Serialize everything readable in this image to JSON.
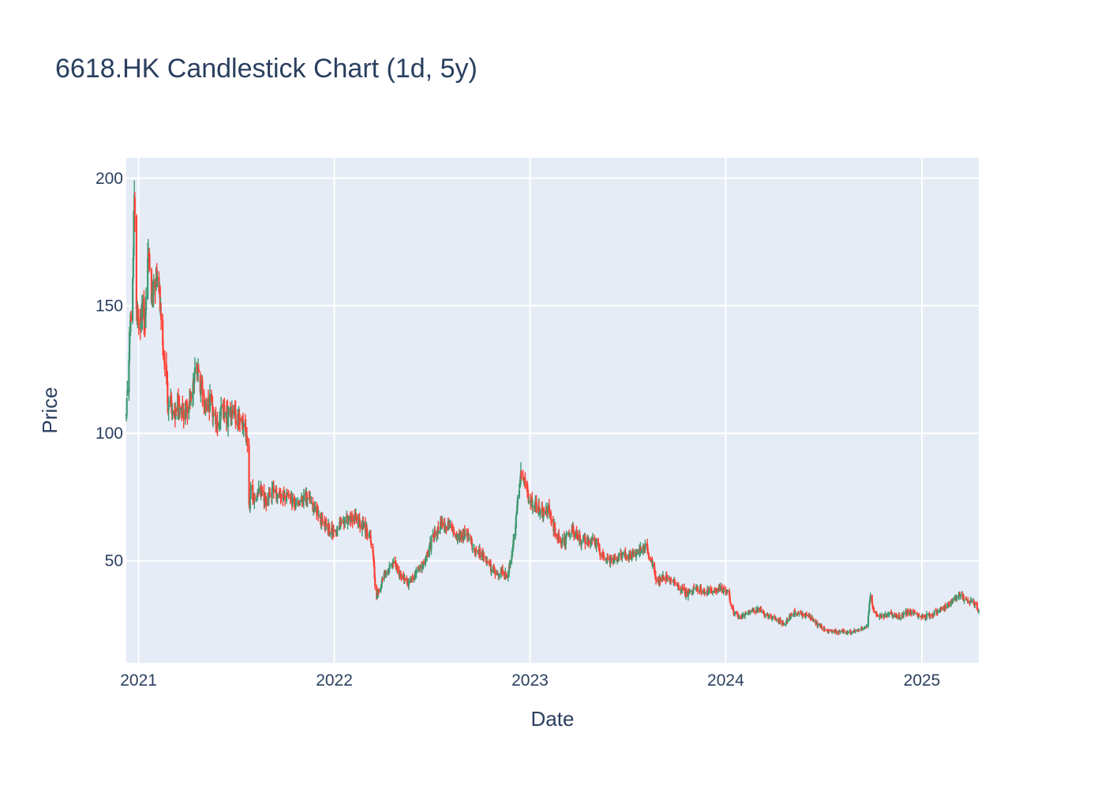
{
  "chart_data": {
    "type": "candlestick",
    "title": "6618.HK Candlestick Chart (1d, 5y)",
    "xlabel": "Date",
    "ylabel": "Price",
    "xlim": [
      "2020-12-09",
      "2025-04-17"
    ],
    "ylim": [
      10,
      208
    ],
    "yticks": [
      50,
      100,
      150,
      200
    ],
    "xticks": [
      "2021-01-01",
      "2022-01-01",
      "2023-01-01",
      "2024-01-01",
      "2025-01-01"
    ],
    "xtick_labels": [
      "2021",
      "2022",
      "2023",
      "2024",
      "2025"
    ],
    "grid": true,
    "legend": "none",
    "colors": {
      "increasing": "#3d9970",
      "decreasing": "#ff4136",
      "plot_bg": "#e5ecf6",
      "grid": "#ffffff"
    },
    "series": [
      {
        "resolution": "1d (approximate closing path, read at key dates)",
        "dates": [
          "2020-12-09",
          "2020-12-12",
          "2020-12-16",
          "2020-12-20",
          "2020-12-24",
          "2020-12-28",
          "2021-01-03",
          "2021-01-08",
          "2021-01-13",
          "2021-01-18",
          "2021-01-24",
          "2021-01-29",
          "2021-02-05",
          "2021-02-12",
          "2021-02-19",
          "2021-02-26",
          "2021-03-02",
          "2021-03-08",
          "2021-03-15",
          "2021-03-25",
          "2021-04-05",
          "2021-04-18",
          "2021-04-28",
          "2021-05-07",
          "2021-05-14",
          "2021-05-25",
          "2021-06-05",
          "2021-06-15",
          "2021-06-25",
          "2021-07-05",
          "2021-07-15",
          "2021-07-22",
          "2021-07-26",
          "2021-07-29",
          "2021-08-05",
          "2021-08-15",
          "2021-08-25",
          "2021-09-05",
          "2021-09-20",
          "2021-10-05",
          "2021-10-20",
          "2021-11-05",
          "2021-11-20",
          "2021-12-05",
          "2021-12-20",
          "2022-01-05",
          "2022-01-15",
          "2022-02-01",
          "2022-02-15",
          "2022-03-01",
          "2022-03-10",
          "2022-03-15",
          "2022-03-20",
          "2022-04-05",
          "2022-04-20",
          "2022-05-05",
          "2022-05-20",
          "2022-06-05",
          "2022-06-20",
          "2022-07-05",
          "2022-07-20",
          "2022-08-05",
          "2022-08-20",
          "2022-09-05",
          "2022-09-20",
          "2022-10-05",
          "2022-10-20",
          "2022-10-31",
          "2022-11-10",
          "2022-11-20",
          "2022-11-28",
          "2022-12-05",
          "2022-12-15",
          "2022-12-28",
          "2023-01-10",
          "2023-01-25",
          "2023-02-05",
          "2023-02-20",
          "2023-03-05",
          "2023-03-20",
          "2023-04-05",
          "2023-04-20",
          "2023-05-05",
          "2023-05-20",
          "2023-06-05",
          "2023-06-20",
          "2023-07-05",
          "2023-07-20",
          "2023-08-05",
          "2023-08-15",
          "2023-08-25",
          "2023-09-05",
          "2023-09-20",
          "2023-10-05",
          "2023-10-20",
          "2023-11-05",
          "2023-11-20",
          "2023-12-05",
          "2023-12-20",
          "2024-01-05",
          "2024-01-15",
          "2024-01-25",
          "2024-02-05",
          "2024-02-20",
          "2024-03-05",
          "2024-03-20",
          "2024-04-05",
          "2024-04-20",
          "2024-05-05",
          "2024-05-20",
          "2024-06-05",
          "2024-06-20",
          "2024-07-05",
          "2024-07-20",
          "2024-08-05",
          "2024-08-20",
          "2024-09-05",
          "2024-09-20",
          "2024-09-28",
          "2024-10-03",
          "2024-10-10",
          "2024-10-20",
          "2024-11-05",
          "2024-11-20",
          "2024-12-05",
          "2024-12-20",
          "2025-01-05",
          "2025-01-20",
          "2025-02-05",
          "2025-02-20",
          "2025-03-05",
          "2025-03-12",
          "2025-03-20",
          "2025-04-01",
          "2025-04-10",
          "2025-04-17"
        ],
        "close": [
          106,
          120,
          142,
          150,
          198,
          150,
          140,
          150,
          142,
          172,
          155,
          157,
          163,
          145,
          128,
          108,
          112,
          107,
          113,
          108,
          110,
          125,
          118,
          110,
          113,
          105,
          108,
          106,
          110,
          105,
          103,
          101,
          70,
          78,
          74,
          78,
          73,
          77,
          76,
          75,
          72,
          76,
          72,
          66,
          63,
          60,
          66,
          67,
          66,
          62,
          58,
          50,
          35,
          45,
          50,
          44,
          41,
          46,
          50,
          60,
          64,
          63,
          60,
          60,
          55,
          52,
          47,
          45,
          46,
          44,
          52,
          64,
          86,
          75,
          72,
          68,
          70,
          59,
          57,
          62,
          58,
          58,
          57,
          50,
          50,
          52,
          52,
          53,
          56,
          50,
          42,
          44,
          42,
          40,
          37,
          40,
          38,
          38,
          39,
          38,
          30,
          28,
          29,
          30,
          31,
          28,
          27,
          25,
          30,
          29,
          28,
          25,
          23,
          22,
          22,
          22,
          23,
          24,
          37,
          30,
          29,
          28,
          29,
          28,
          30,
          29,
          28,
          29,
          31,
          33,
          35,
          37,
          35,
          34,
          33,
          30
        ],
        "high_wick_scale": 0.04,
        "low_wick_scale": 0.04
      }
    ]
  }
}
